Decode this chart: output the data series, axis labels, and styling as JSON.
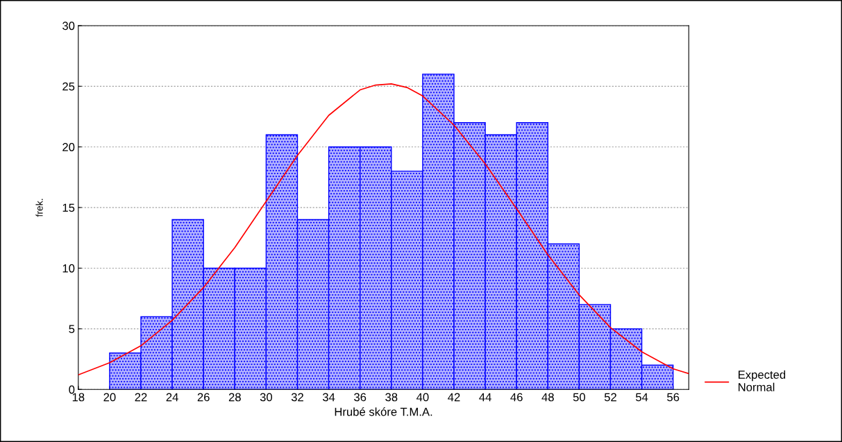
{
  "chart_data": {
    "type": "histogram",
    "xlabel": "Hrubé skóre T.M.A.",
    "ylabel": "frek.",
    "series": [
      {
        "color": "#0000ff",
        "bins": [
          20,
          22,
          24,
          26,
          28,
          30,
          32,
          34,
          36,
          38,
          40,
          42,
          44,
          46,
          48,
          50,
          52,
          54,
          56
        ],
        "values": [
          3,
          6,
          14,
          10,
          10,
          21,
          14,
          20,
          20,
          18,
          26,
          22,
          21,
          22,
          12,
          7,
          5,
          2
        ]
      },
      {
        "type": "line",
        "name": "Expected\nNormal",
        "color": "#ff0000",
        "x": [
          18,
          20,
          22,
          24,
          26,
          28,
          30,
          32,
          34,
          36,
          37,
          38,
          39,
          40,
          42,
          44,
          46,
          48,
          50,
          52,
          54,
          56,
          57
        ],
        "values": [
          1.2,
          2.2,
          3.6,
          5.7,
          8.4,
          11.7,
          15.5,
          19.3,
          22.6,
          24.7,
          25.1,
          25.2,
          24.9,
          24.2,
          21.8,
          18.6,
          14.9,
          11.1,
          7.8,
          5.1,
          3.1,
          1.7,
          1.3
        ]
      }
    ],
    "xlim": [
      18,
      57
    ],
    "xticks": [
      18,
      20,
      22,
      24,
      26,
      28,
      30,
      32,
      34,
      36,
      38,
      40,
      42,
      44,
      46,
      48,
      50,
      52,
      54,
      56
    ],
    "ylim": [
      0,
      30
    ],
    "yticks": [
      0,
      5,
      10,
      15,
      20,
      25,
      30
    ],
    "grid": "y",
    "legend": "right"
  }
}
